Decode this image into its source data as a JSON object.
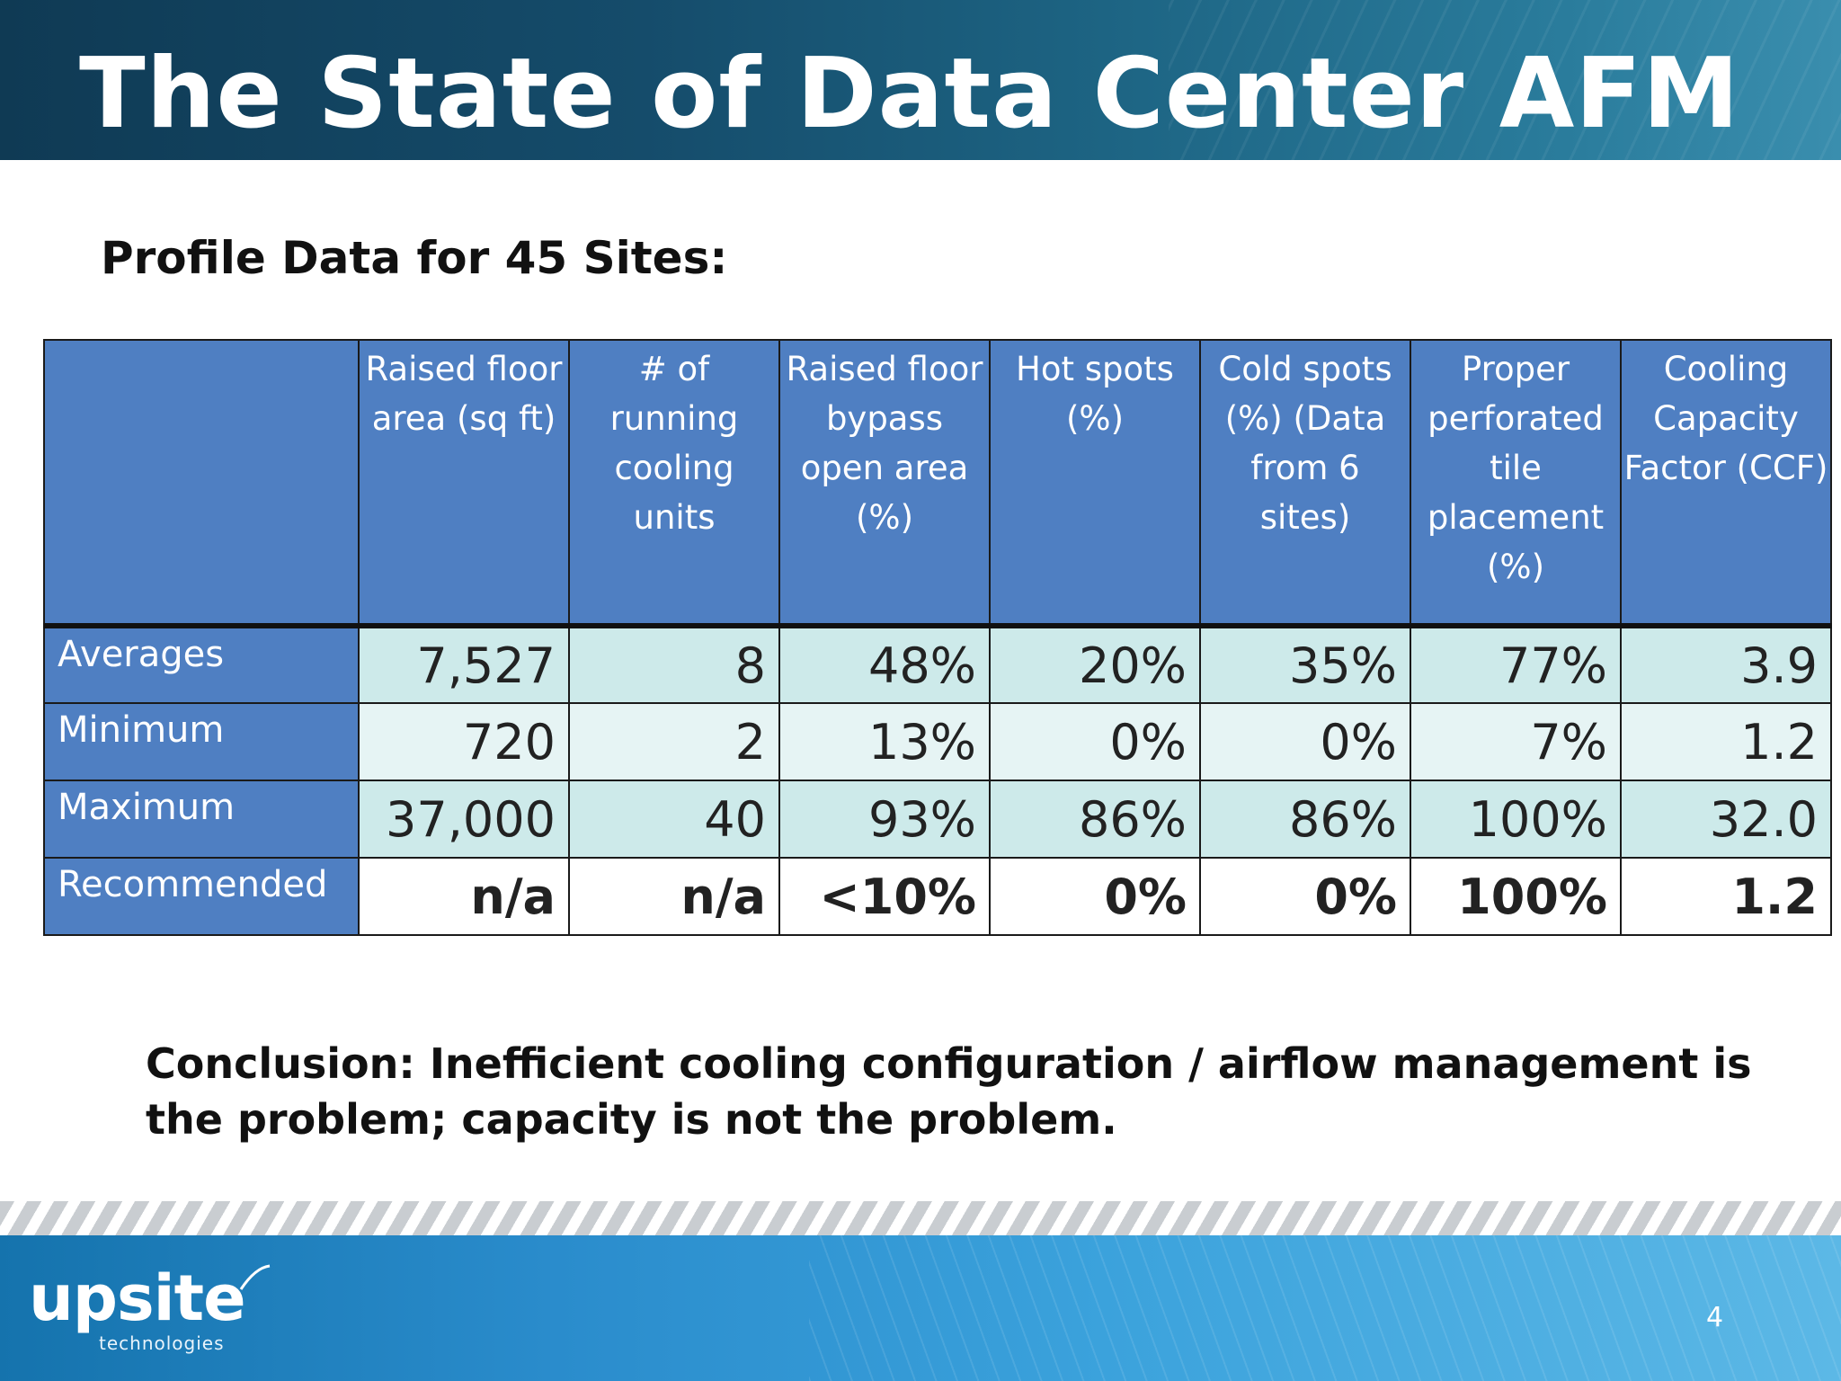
{
  "slide": {
    "title": "The State of Data Center AFM",
    "subtitle": "Profile Data for 45 Sites:",
    "page_number": "4"
  },
  "table": {
    "headers": [
      "",
      "Raised floor area (sq ft)",
      "# of running cooling units",
      "Raised floor bypass open area (%)",
      "Hot spots (%)",
      "Cold spots (%) (Data from 6 sites)",
      "Proper perforated tile placement (%)",
      "Cooling Capacity Factor (CCF)"
    ],
    "rows": [
      {
        "label": "Averages",
        "cells": [
          "7,527",
          "8",
          "48%",
          "20%",
          "35%",
          "77%",
          "3.9"
        ]
      },
      {
        "label": "Minimum",
        "cells": [
          "720",
          "2",
          "13%",
          "0%",
          "0%",
          "7%",
          "1.2"
        ]
      },
      {
        "label": "Maximum",
        "cells": [
          "37,000",
          "40",
          "93%",
          "86%",
          "86%",
          "100%",
          "32.0"
        ]
      },
      {
        "label": "Recommended",
        "cells": [
          "n/a",
          "n/a",
          "<10%",
          "0%",
          "0%",
          "100%",
          "1.2"
        ]
      }
    ]
  },
  "conclusion": {
    "lead": "Conclusion:",
    "text": "Inefficient cooling configuration / airflow management is the problem; capacity is not the problem."
  },
  "footer": {
    "logo_word": "upsite",
    "logo_sub": "technologies"
  },
  "colors": {
    "header_blue": "#4f7fc2",
    "row_teal": "#cdeaea",
    "row_light": "#e6f4f4",
    "banner_dark": "#0f3a54",
    "footer_blue": "#2a8ccc"
  }
}
